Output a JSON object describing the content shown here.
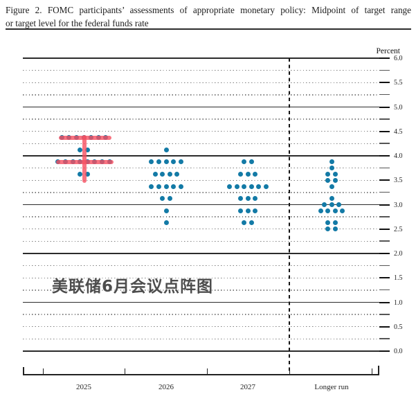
{
  "figure": {
    "title_line1": "Figure 2.  FOMC participants’ assessments of appropriate monetary policy:  Midpoint of target range",
    "title_line2": "or target level for the federal funds rate"
  },
  "watermark": "美联储6月会议点阵图",
  "chart_data": {
    "type": "scatter",
    "title": "FOMC participants' assessments of appropriate monetary policy: Midpoint of target range or target level for the federal funds rate",
    "y_axis_title": "Percent",
    "ylim": [
      0.0,
      6.0
    ],
    "y_label_step": 0.5,
    "y_gridline_step": 0.25,
    "grid": "horizontal gridlines every 0.25; solid at whole percents, dotted otherwise; short solid tick at right end of every line",
    "y_tick_labels": [
      "6.0",
      "5.5",
      "5.0",
      "4.5",
      "4.0",
      "3.5",
      "3.0",
      "2.5",
      "2.0",
      "1.5",
      "1.0",
      "0.5",
      "0.0"
    ],
    "categories": [
      "2025",
      "2026",
      "2027",
      "Longer run"
    ],
    "separator": "dashed vertical line between 2027 and Longer run",
    "legend_position": "none",
    "distributions": [
      {
        "category": "2025",
        "dots": [
          {
            "rate": 4.375,
            "count": 7
          },
          {
            "rate": 4.125,
            "count": 2
          },
          {
            "rate": 3.875,
            "count": 8
          },
          {
            "rate": 3.625,
            "count": 2
          }
        ]
      },
      {
        "category": "2026",
        "dots": [
          {
            "rate": 4.125,
            "count": 1
          },
          {
            "rate": 3.875,
            "count": 5
          },
          {
            "rate": 3.625,
            "count": 4
          },
          {
            "rate": 3.375,
            "count": 5
          },
          {
            "rate": 3.125,
            "count": 2
          },
          {
            "rate": 2.875,
            "count": 1
          },
          {
            "rate": 2.625,
            "count": 1
          }
        ]
      },
      {
        "category": "2027",
        "dots": [
          {
            "rate": 3.875,
            "count": 2
          },
          {
            "rate": 3.625,
            "count": 3
          },
          {
            "rate": 3.375,
            "count": 6
          },
          {
            "rate": 3.125,
            "count": 3
          },
          {
            "rate": 2.875,
            "count": 3
          },
          {
            "rate": 2.625,
            "count": 2
          }
        ]
      },
      {
        "category": "Longer run",
        "dots": [
          {
            "rate": 3.875,
            "count": 1
          },
          {
            "rate": 3.75,
            "count": 1
          },
          {
            "rate": 3.625,
            "count": 2
          },
          {
            "rate": 3.5,
            "count": 2
          },
          {
            "rate": 3.375,
            "count": 1
          },
          {
            "rate": 3.125,
            "count": 1
          },
          {
            "rate": 3.0,
            "count": 3
          },
          {
            "rate": 2.875,
            "count": 4
          },
          {
            "rate": 2.625,
            "count": 2
          },
          {
            "rate": 2.5,
            "count": 2
          }
        ]
      }
    ],
    "annotations": [
      {
        "name": "red-highlight-top-row",
        "type": "hline",
        "rate": 4.375,
        "x": 85,
        "width": 76,
        "thickness": 6
      },
      {
        "name": "red-highlight-median-row",
        "type": "hline",
        "rate": 3.875,
        "x": 81,
        "width": 83,
        "thickness": 6.5
      },
      {
        "name": "red-highlight-vertical",
        "type": "vline",
        "x": 119,
        "from_rate": 4.42,
        "to_rate": 3.44,
        "thickness": 6
      }
    ],
    "colors": {
      "dot": "#137aa6",
      "annotation": "rgba(246,80,98,0.8)",
      "gridline_solid": "#2b2b2b",
      "gridline_dotted": "#7e7e7e",
      "axis": "#222222"
    }
  }
}
